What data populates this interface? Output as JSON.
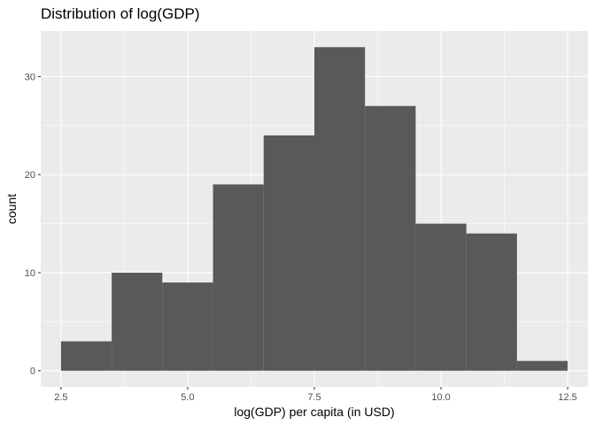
{
  "chart_data": {
    "type": "bar",
    "title": "Distribution of log(GDP)",
    "xlabel": "log(GDP) per capita (in USD)",
    "ylabel": "count",
    "xlim": [
      2.1,
      12.9
    ],
    "ylim": [
      -1.65,
      34.65
    ],
    "x_ticks": [
      2.5,
      5.0,
      7.5,
      10.0,
      12.5
    ],
    "x_tick_labels": [
      "2.5",
      "5.0",
      "7.5",
      "10.0",
      "12.5"
    ],
    "y_ticks": [
      0,
      10,
      20,
      30
    ],
    "y_tick_labels": [
      "0",
      "10",
      "20",
      "30"
    ],
    "bins": [
      {
        "x0": 2.5,
        "x1": 3.5,
        "count": 3
      },
      {
        "x0": 3.5,
        "x1": 4.5,
        "count": 10
      },
      {
        "x0": 4.5,
        "x1": 5.5,
        "count": 9
      },
      {
        "x0": 5.5,
        "x1": 6.5,
        "count": 19
      },
      {
        "x0": 6.5,
        "x1": 7.5,
        "count": 24
      },
      {
        "x0": 7.5,
        "x1": 8.5,
        "count": 33
      },
      {
        "x0": 8.5,
        "x1": 9.5,
        "count": 27
      },
      {
        "x0": 9.5,
        "x1": 10.5,
        "count": 15
      },
      {
        "x0": 10.5,
        "x1": 11.5,
        "count": 14
      },
      {
        "x0": 11.5,
        "x1": 12.5,
        "count": 1
      }
    ],
    "grid": true,
    "bar_color": "#595959",
    "panel_color": "#ebebeb",
    "grid_color": "#ffffff"
  }
}
